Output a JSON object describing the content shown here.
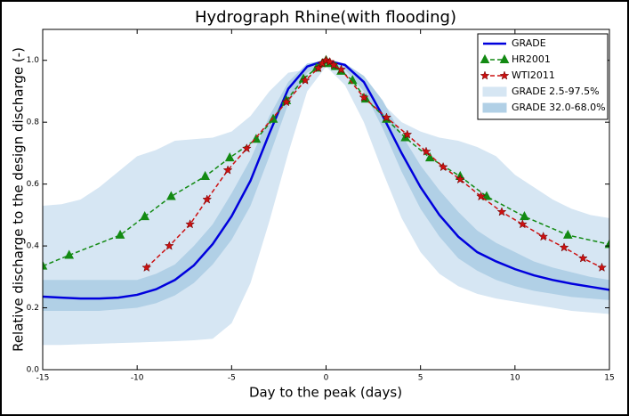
{
  "chart_data": {
    "type": "line",
    "title": "Hydrograph Rhine(with flooding)",
    "xlabel": "Day to the peak (days)",
    "ylabel": "Relative discharge to the design discharge (-)",
    "xlim": [
      -15,
      15
    ],
    "xticks": [
      -15,
      -10,
      -5,
      0,
      5,
      10,
      15
    ],
    "ylim": [
      0,
      1.1
    ],
    "yticks": [
      {
        "value": 0,
        "label": "0.0"
      },
      0.2,
      0.4,
      0.6,
      0.8,
      {
        "value": 1,
        "label": "1.0"
      }
    ],
    "legend": "upper right",
    "series": [
      {
        "name": "GRADE",
        "kind": "line",
        "color": "#0000dd",
        "dashed": false,
        "marker": "none",
        "x": [
          -15,
          -14,
          -13,
          -12,
          -11,
          -10,
          -9,
          -8,
          -7,
          -6,
          -5,
          -4,
          -3,
          -2,
          -1,
          0,
          1,
          2,
          3,
          4,
          5,
          6,
          7,
          8,
          9,
          10,
          11,
          12,
          13,
          14,
          15
        ],
        "values": [
          0.236,
          0.233,
          0.23,
          0.23,
          0.233,
          0.242,
          0.26,
          0.29,
          0.337,
          0.406,
          0.496,
          0.611,
          0.764,
          0.908,
          0.98,
          1.0,
          0.985,
          0.93,
          0.82,
          0.7,
          0.59,
          0.5,
          0.43,
          0.38,
          0.35,
          0.325,
          0.305,
          0.29,
          0.278,
          0.268,
          0.258
        ]
      },
      {
        "name": "HR2001",
        "kind": "line",
        "color": "#138a13",
        "dashed": true,
        "marker": "triangle",
        "x": [
          -15,
          -13.6,
          -10.9,
          -9.6,
          -8.2,
          -6.4,
          -5.1,
          -3.7,
          -2.8,
          -2.1,
          -1.2,
          -0.5,
          -0.2,
          0,
          0.2,
          0.5,
          0.8,
          1.4,
          2.1,
          3.2,
          4.2,
          5.5,
          7.1,
          8.5,
          10.5,
          12.8,
          15
        ],
        "values": [
          0.335,
          0.37,
          0.435,
          0.495,
          0.56,
          0.625,
          0.685,
          0.745,
          0.81,
          0.87,
          0.94,
          0.975,
          0.99,
          1.0,
          0.99,
          0.98,
          0.965,
          0.935,
          0.875,
          0.81,
          0.75,
          0.685,
          0.625,
          0.56,
          0.495,
          0.435,
          0.405
        ]
      },
      {
        "name": "WTI2011",
        "kind": "line",
        "color": "#cc1111",
        "dashed": true,
        "marker": "star",
        "x": [
          -9.5,
          -8.3,
          -7.2,
          -6.3,
          -5.2,
          -4.2,
          -2.1,
          -1.1,
          -0.4,
          -0.2,
          0,
          0.2,
          0.4,
          0.8,
          2.0,
          3.2,
          4.3,
          5.3,
          6.2,
          7.1,
          8.2,
          9.3,
          10.4,
          11.5,
          12.6,
          13.6,
          14.6
        ],
        "values": [
          0.33,
          0.4,
          0.47,
          0.55,
          0.645,
          0.715,
          0.865,
          0.935,
          0.975,
          0.99,
          1.0,
          0.995,
          0.985,
          0.97,
          0.88,
          0.815,
          0.76,
          0.705,
          0.655,
          0.615,
          0.56,
          0.51,
          0.47,
          0.43,
          0.395,
          0.36,
          0.33
        ]
      },
      {
        "name": "GRADE 2.5-97.5%",
        "kind": "band",
        "color": "#d6e6f3",
        "x": [
          -15,
          -14,
          -13,
          -12,
          -11,
          -10,
          -9,
          -8,
          -7,
          -6,
          -5,
          -4,
          -3,
          -2,
          -1,
          0,
          1,
          2,
          3,
          4,
          5,
          6,
          7,
          8,
          9,
          10,
          11,
          12,
          13,
          14,
          15
        ],
        "upper": [
          0.53,
          0.535,
          0.55,
          0.59,
          0.64,
          0.69,
          0.71,
          0.74,
          0.745,
          0.75,
          0.77,
          0.82,
          0.9,
          0.96,
          0.97,
          1.0,
          0.97,
          0.93,
          0.86,
          0.8,
          0.77,
          0.75,
          0.74,
          0.72,
          0.69,
          0.63,
          0.59,
          0.55,
          0.52,
          0.5,
          0.49
        ],
        "lower": [
          0.08,
          0.08,
          0.082,
          0.084,
          0.086,
          0.088,
          0.09,
          0.092,
          0.095,
          0.1,
          0.15,
          0.28,
          0.48,
          0.7,
          0.9,
          0.98,
          0.92,
          0.8,
          0.64,
          0.49,
          0.38,
          0.31,
          0.27,
          0.245,
          0.23,
          0.22,
          0.21,
          0.2,
          0.19,
          0.185,
          0.18
        ]
      },
      {
        "name": "GRADE 32.0-68.0%",
        "kind": "band",
        "color": "#b1d0e6",
        "x": [
          -15,
          -14,
          -13,
          -12,
          -11,
          -10,
          -9,
          -8,
          -7,
          -6,
          -5,
          -4,
          -3,
          -2,
          -1,
          0,
          1,
          2,
          3,
          4,
          5,
          6,
          7,
          8,
          9,
          10,
          11,
          12,
          13,
          14,
          15
        ],
        "upper": [
          0.29,
          0.29,
          0.29,
          0.29,
          0.29,
          0.29,
          0.31,
          0.34,
          0.4,
          0.47,
          0.57,
          0.68,
          0.82,
          0.93,
          0.99,
          1.0,
          0.99,
          0.95,
          0.87,
          0.76,
          0.66,
          0.58,
          0.51,
          0.45,
          0.41,
          0.38,
          0.35,
          0.33,
          0.315,
          0.3,
          0.29
        ],
        "lower": [
          0.19,
          0.19,
          0.19,
          0.19,
          0.195,
          0.2,
          0.215,
          0.24,
          0.28,
          0.34,
          0.42,
          0.53,
          0.69,
          0.86,
          0.96,
          0.99,
          0.97,
          0.9,
          0.78,
          0.64,
          0.52,
          0.43,
          0.36,
          0.32,
          0.29,
          0.27,
          0.255,
          0.245,
          0.235,
          0.23,
          0.225
        ]
      }
    ]
  }
}
